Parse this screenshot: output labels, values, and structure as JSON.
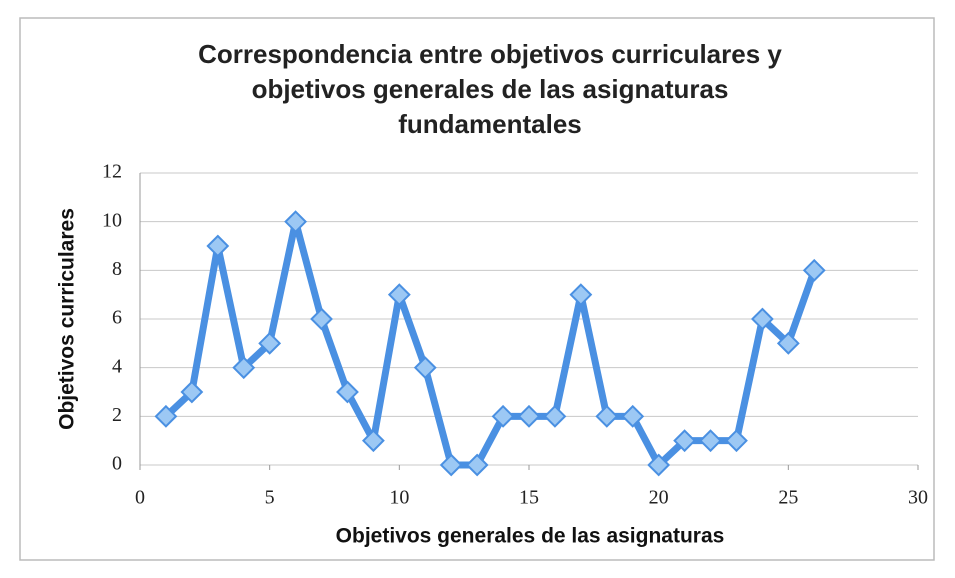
{
  "chart_data": {
    "type": "line",
    "title": [
      "Correspondencia entre objetivos curriculares y",
      "objetivos generales de las asignaturas",
      "fundamentales"
    ],
    "x_label": "Objetivos generales de las asignaturas",
    "y_label": "Objetivos curriculares",
    "x": [
      1,
      2,
      3,
      4,
      5,
      6,
      7,
      8,
      9,
      10,
      11,
      12,
      13,
      14,
      15,
      16,
      17,
      18,
      19,
      20,
      21,
      22,
      23,
      24,
      25,
      26
    ],
    "values": [
      2,
      3,
      9,
      4,
      5,
      10,
      6,
      3,
      1,
      7,
      4,
      0,
      0,
      2,
      2,
      2,
      7,
      2,
      2,
      0,
      1,
      1,
      1,
      6,
      5,
      8
    ],
    "color": "#4a90e2",
    "xlim": [
      0,
      30
    ],
    "xticks": [
      0,
      5,
      10,
      15,
      20,
      25,
      30
    ],
    "ylim": [
      0,
      12
    ],
    "yticks": [
      0,
      2,
      4,
      6,
      8,
      10,
      12
    ],
    "grid": true
  }
}
